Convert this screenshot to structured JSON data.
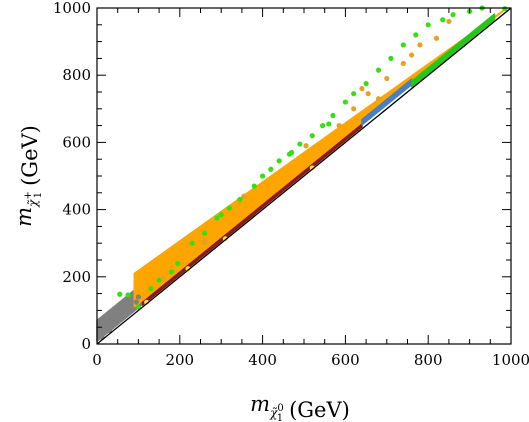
{
  "chart_data": {
    "type": "scatter",
    "title": "",
    "xlabel": {
      "symbol": "m",
      "sub": "χ̃",
      "subsub": "1",
      "subsup": "0",
      "units": "(GeV)"
    },
    "ylabel": {
      "symbol": "m",
      "sub": "χ̃",
      "subsub": "1",
      "subsup": "+",
      "units": "(GeV)"
    },
    "xlim": [
      0,
      1000
    ],
    "ylim": [
      0,
      1000
    ],
    "xticks": [
      "0",
      "200",
      "400",
      "600",
      "800",
      "1000"
    ],
    "yticks": [
      "0",
      "200",
      "400",
      "600",
      "800",
      "1000"
    ],
    "grid": false,
    "reference_line": {
      "slope": 1,
      "intercept": 0,
      "color": "#000000"
    },
    "bands": [
      {
        "color": "#808080",
        "x_range": [
          0,
          110
        ],
        "dy_range": [
          8,
          70
        ]
      },
      {
        "color": "#ffa500",
        "x_range": [
          90,
          990
        ],
        "dy_range": [
          20,
          120
        ]
      },
      {
        "color": "#8b1a1a",
        "x_range": [
          110,
          640
        ],
        "dy_range": [
          6,
          14
        ]
      },
      {
        "color": "#4a7fc1",
        "x_range": [
          640,
          760
        ],
        "dy_range": [
          12,
          28
        ]
      },
      {
        "color": "#22c71a",
        "x_range": [
          760,
          960
        ],
        "dy_range": [
          6,
          22
        ]
      }
    ],
    "series": [
      {
        "color": "#808080",
        "points": [
          [
            5,
            30
          ],
          [
            15,
            45
          ],
          [
            25,
            55
          ],
          [
            40,
            65
          ],
          [
            55,
            75
          ],
          [
            70,
            88
          ],
          [
            85,
            105
          ],
          [
            95,
            125
          ],
          [
            100,
            140
          ],
          [
            12,
            20
          ],
          [
            30,
            40
          ],
          [
            60,
            100
          ],
          [
            75,
            120
          ]
        ]
      },
      {
        "color": "#33e010",
        "points": [
          [
            55,
            148
          ],
          [
            75,
            146
          ],
          [
            100,
            110
          ],
          [
            130,
            165
          ],
          [
            150,
            190
          ],
          [
            180,
            215
          ],
          [
            195,
            240
          ],
          [
            230,
            300
          ],
          [
            260,
            330
          ],
          [
            290,
            375
          ],
          [
            320,
            405
          ],
          [
            345,
            430
          ],
          [
            380,
            470
          ],
          [
            400,
            500
          ],
          [
            420,
            520
          ],
          [
            440,
            545
          ],
          [
            465,
            565
          ],
          [
            490,
            595
          ],
          [
            520,
            620
          ],
          [
            545,
            650
          ],
          [
            570,
            680
          ],
          [
            600,
            720
          ],
          [
            620,
            745
          ],
          [
            650,
            775
          ],
          [
            680,
            815
          ],
          [
            710,
            850
          ],
          [
            740,
            890
          ],
          [
            770,
            920
          ],
          [
            800,
            950
          ],
          [
            835,
            965
          ],
          [
            860,
            980
          ],
          [
            900,
            990
          ],
          [
            930,
            1000
          ],
          [
            985,
            998
          ],
          [
            300,
            385
          ],
          [
            470,
            570
          ],
          [
            560,
            655
          ]
        ]
      },
      {
        "color": "#e8a020",
        "points": [
          [
            160,
            195
          ],
          [
            260,
            305
          ],
          [
            355,
            440
          ],
          [
            505,
            590
          ],
          [
            585,
            650
          ],
          [
            640,
            760
          ],
          [
            655,
            745
          ],
          [
            700,
            790
          ],
          [
            740,
            835
          ],
          [
            760,
            860
          ],
          [
            780,
            890
          ],
          [
            820,
            910
          ],
          [
            850,
            960
          ],
          [
            680,
            730
          ],
          [
            620,
            700
          ]
        ]
      },
      {
        "color": "#f2e05a",
        "points": [
          [
            120,
            124
          ],
          [
            220,
            224
          ],
          [
            310,
            313
          ],
          [
            520,
            524
          ]
        ]
      }
    ]
  }
}
